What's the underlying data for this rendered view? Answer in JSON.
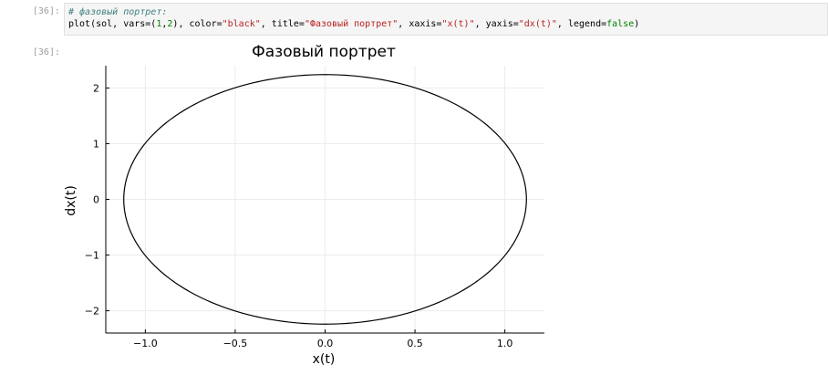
{
  "input_prompt": "[36]:",
  "output_prompt": "[36]:",
  "code": {
    "comment": "# фазовый портрет:",
    "tokens": [
      {
        "t": "plot(sol, vars=(",
        "c": "plain"
      },
      {
        "t": "1",
        "c": "num"
      },
      {
        "t": ",",
        "c": "plain"
      },
      {
        "t": "2",
        "c": "num"
      },
      {
        "t": "), color=",
        "c": "plain"
      },
      {
        "t": "\"black\"",
        "c": "str"
      },
      {
        "t": ", title=",
        "c": "plain"
      },
      {
        "t": "\"Фазовый портрет\"",
        "c": "str"
      },
      {
        "t": ", xaxis=",
        "c": "plain"
      },
      {
        "t": "\"x(t)\"",
        "c": "str"
      },
      {
        "t": ", yaxis=",
        "c": "plain"
      },
      {
        "t": "\"dx(t)\"",
        "c": "str"
      },
      {
        "t": ", legend=",
        "c": "plain"
      },
      {
        "t": "false",
        "c": "kw"
      },
      {
        "t": ")",
        "c": "plain"
      }
    ]
  },
  "chart_data": {
    "type": "line",
    "title": "Фазовый портрет",
    "xlabel": "x(t)",
    "ylabel": "dx(t)",
    "xlim": [
      -1.22,
      1.22
    ],
    "ylim": [
      -2.4,
      2.4
    ],
    "xticks": [
      -1.0,
      -0.5,
      0.0,
      0.5,
      1.0
    ],
    "xtick_labels": [
      "−1.0",
      "−0.5",
      "0.0",
      "0.5",
      "1.0"
    ],
    "yticks": [
      -2,
      -1,
      0,
      1,
      2
    ],
    "ytick_labels": [
      "−2",
      "−1",
      "0",
      "1",
      "2"
    ],
    "grid": true,
    "legend": false,
    "series": [
      {
        "color": "#000000",
        "shape": "ellipse",
        "center": [
          0,
          0
        ],
        "x_amplitude": 1.12,
        "y_amplitude": 2.24
      }
    ]
  }
}
